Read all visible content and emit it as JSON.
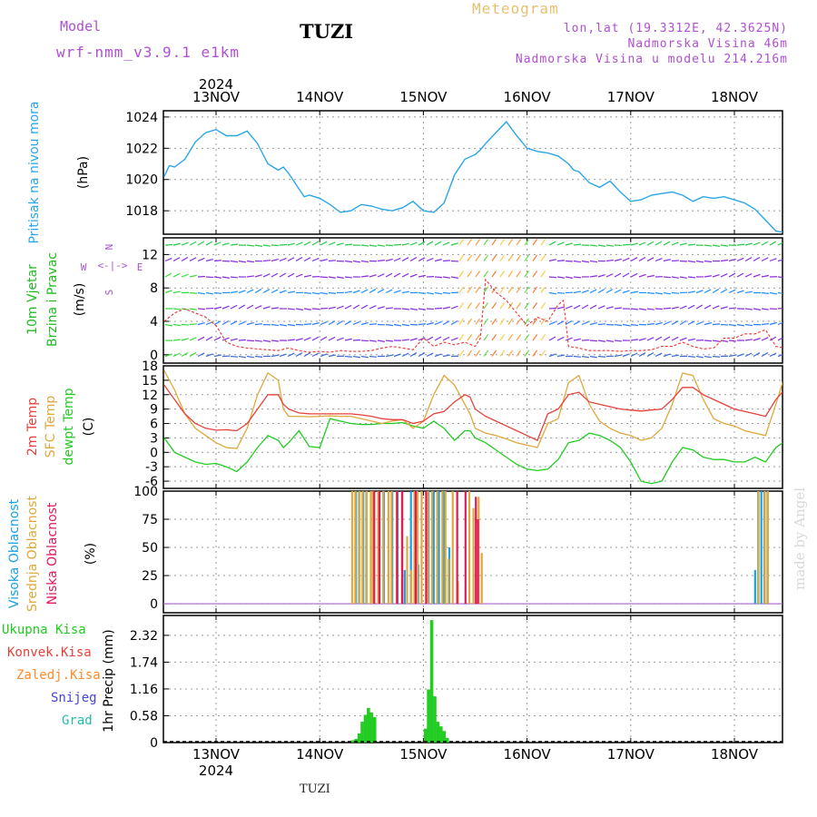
{
  "header": {
    "model_label": "Model",
    "model_name": "wrf-nmm_v3.9.1 e1km",
    "title": "TUZI",
    "subtitle": "Meteogram",
    "lonlat": "lon,lat (19.3312E, 42.3625N)",
    "elevation": "Nadmorska Visina 46m",
    "elevation_model": "Nadmorska Visina u modelu 214.216m"
  },
  "footer": {
    "station": "TUZI",
    "watermark": "made by Angel"
  },
  "colors": {
    "pressure": "#29a6e8",
    "t2m": "#e8403a",
    "sfc": "#e0a83c",
    "dewpt": "#22cc22",
    "high_cloud": "#1aa0e6",
    "mid_cloud": "#e0a83c",
    "low_cloud": "#e01a5a",
    "precip_total": "#22cc22",
    "precip_conv": "#e8403a",
    "precip_frozen": "#ff8a2a",
    "snow": "#4444dd",
    "hail": "#22bbaa",
    "wind_label": "#22bb22",
    "compass": "#b04fd3"
  },
  "chart_data": [
    {
      "type": "line",
      "panel": "pressure",
      "ylabel_main": "Pritisak na nivou mora",
      "ylabel_unit": "(hPa)",
      "yticks": [
        1018,
        1020,
        1022,
        1024
      ],
      "ylim": [
        1016.5,
        1024.4
      ],
      "xlim_days": [
        0,
        6
      ],
      "x_tick_labels": [
        "13NOV",
        "14NOV",
        "15NOV",
        "16NOV",
        "17NOV",
        "18NOV"
      ],
      "x_year": "2024",
      "series": [
        {
          "x": [
            -0.5,
            -0.45,
            -0.4,
            -0.3,
            -0.2,
            -0.1,
            0,
            0.1,
            0.2,
            0.3,
            0.4,
            0.5,
            0.6,
            0.65,
            0.7,
            0.8,
            0.85,
            0.9,
            1.0,
            1.1,
            1.2,
            1.3,
            1.4,
            1.5,
            1.6,
            1.7,
            1.8,
            1.9,
            2.0,
            2.1,
            2.2,
            2.3,
            2.4,
            2.5,
            2.55,
            2.6,
            2.7,
            2.8,
            2.9,
            3.0,
            3.1,
            3.2,
            3.3,
            3.4,
            3.45,
            3.5,
            3.6,
            3.7,
            3.8,
            3.9,
            4.0,
            4.1,
            4.2,
            4.3,
            4.4,
            4.5,
            4.6,
            4.7,
            4.8,
            4.9,
            5.0,
            5.1,
            5.2,
            5.3,
            5.4,
            5.5,
            5.55
          ],
          "values": [
            1020.2,
            1020.9,
            1020.8,
            1021.3,
            1022.4,
            1023.0,
            1023.2,
            1022.8,
            1022.8,
            1023.1,
            1022.3,
            1021.0,
            1020.6,
            1020.8,
            1020.4,
            1019.4,
            1018.9,
            1019.0,
            1018.8,
            1018.4,
            1017.9,
            1018.0,
            1018.4,
            1018.3,
            1018.1,
            1018.0,
            1018.2,
            1018.6,
            1018.0,
            1017.9,
            1018.5,
            1020.3,
            1021.3,
            1021.6,
            1021.9,
            1022.3,
            1023.0,
            1023.7,
            1022.8,
            1022.0,
            1021.8,
            1021.7,
            1021.5,
            1021.0,
            1020.6,
            1020.5,
            1019.8,
            1019.5,
            1019.9,
            1019.2,
            1018.6,
            1018.7,
            1019.0,
            1019.1,
            1019.2,
            1019.0,
            1018.6,
            1018.9,
            1018.8,
            1018.9,
            1018.7,
            1018.5,
            1018.1,
            1017.4,
            1016.7,
            1016.6,
            1016.4
          ]
        }
      ]
    },
    {
      "type": "line",
      "panel": "wind",
      "ylabel_main": "10m Vjetar",
      "ylabel_sub": "Brzina i Pravac",
      "ylabel_unit": "(m/s)",
      "compass": {
        "N": "N",
        "S": "S",
        "W": "W",
        "E": "E"
      },
      "yticks": [
        0,
        4,
        8,
        12
      ],
      "ylim": [
        -1,
        14
      ],
      "series": [
        {
          "name": "",
          "x": [
            -0.5,
            -0.4,
            -0.3,
            -0.2,
            -0.1,
            0,
            0.1,
            0.2,
            0.3,
            0.4,
            0.5,
            0.6,
            0.7,
            0.8,
            0.9,
            1.0,
            1.1,
            1.2,
            1.3,
            1.4,
            1.5,
            1.6,
            1.7,
            1.8,
            1.9,
            2.0,
            2.1,
            2.2,
            2.3,
            2.4,
            2.5,
            2.55,
            2.6,
            2.7,
            2.8,
            2.9,
            3.0,
            3.1,
            3.2,
            3.3,
            3.35,
            3.4,
            3.5,
            3.6,
            3.7,
            3.8,
            3.9,
            4.0,
            4.1,
            4.2,
            4.3,
            4.4,
            4.5,
            4.6,
            4.7,
            4.8,
            4.9,
            5.0,
            5.1,
            5.2,
            5.3,
            5.4,
            5.5,
            5.55
          ],
          "values": [
            4.0,
            5.0,
            5.5,
            5.0,
            4.5,
            3.5,
            1.5,
            1.0,
            0.8,
            0.7,
            0.6,
            0.5,
            0.8,
            0.5,
            0.3,
            0.4,
            0.3,
            0.5,
            0.4,
            0.4,
            0.5,
            0.8,
            1.0,
            0.8,
            0.6,
            2.0,
            1.0,
            1.5,
            1.2,
            1.5,
            1.0,
            2.0,
            9.0,
            7.5,
            6.5,
            5.0,
            3.5,
            4.5,
            4.0,
            6.0,
            6.5,
            1.0,
            0.8,
            0.5,
            0.5,
            0.5,
            0.4,
            0.5,
            0.5,
            0.6,
            1.0,
            1.0,
            1.5,
            1.0,
            0.7,
            0.8,
            2.0,
            2.0,
            2.5,
            2.5,
            3.0,
            1.0,
            0.8,
            0.7
          ]
        }
      ]
    },
    {
      "type": "line",
      "panel": "temperature",
      "ylabel_lines": [
        "2m Temp",
        "SFC Temp",
        "dewpt Temp"
      ],
      "ylabel_unit": "(C)",
      "yticks": [
        -6,
        -3,
        0,
        3,
        6,
        9,
        12,
        15,
        18
      ],
      "ylim": [
        -7.5,
        18
      ],
      "series": [
        {
          "name": "2m Temp",
          "x": [
            -0.5,
            -0.4,
            -0.3,
            -0.2,
            -0.1,
            0,
            0.1,
            0.2,
            0.3,
            0.4,
            0.5,
            0.6,
            0.65,
            0.7,
            0.8,
            0.9,
            1.0,
            1.1,
            1.2,
            1.3,
            1.4,
            1.5,
            1.6,
            1.7,
            1.8,
            1.9,
            2.0,
            2.1,
            2.2,
            2.3,
            2.4,
            2.45,
            2.5,
            2.6,
            2.7,
            2.8,
            2.9,
            3.0,
            3.1,
            3.2,
            3.3,
            3.4,
            3.5,
            3.6,
            3.7,
            3.8,
            3.9,
            4.0,
            4.1,
            4.2,
            4.3,
            4.4,
            4.5,
            4.6,
            4.7,
            4.8,
            4.9,
            5.0,
            5.1,
            5.2,
            5.3,
            5.4,
            5.5,
            5.55
          ],
          "values": [
            14.0,
            11.0,
            8.0,
            6.0,
            5.0,
            4.6,
            4.7,
            4.5,
            6.0,
            9.0,
            12.0,
            12.0,
            10.0,
            9.0,
            8.2,
            8.0,
            8.0,
            8.0,
            8.0,
            8.0,
            7.8,
            7.5,
            7.0,
            6.8,
            6.8,
            6.0,
            6.5,
            8.0,
            8.5,
            10.5,
            12.0,
            11.5,
            9.0,
            7.5,
            6.5,
            5.5,
            4.5,
            3.5,
            2.5,
            8.0,
            9.0,
            12.0,
            12.5,
            10.5,
            10.0,
            9.5,
            9.0,
            8.8,
            8.6,
            8.8,
            9.0,
            11.0,
            13.5,
            13.5,
            12.0,
            11.0,
            10.0,
            9.0,
            8.5,
            8.0,
            7.5,
            11.0,
            13.5,
            14.0
          ]
        },
        {
          "name": "SFC Temp",
          "x": [
            -0.5,
            -0.4,
            -0.3,
            -0.2,
            -0.1,
            0,
            0.1,
            0.2,
            0.3,
            0.4,
            0.5,
            0.6,
            0.65,
            0.7,
            0.8,
            0.9,
            1.0,
            1.1,
            1.2,
            1.3,
            1.4,
            1.5,
            1.6,
            1.7,
            1.8,
            1.9,
            2.0,
            2.1,
            2.2,
            2.3,
            2.4,
            2.45,
            2.5,
            2.6,
            2.7,
            2.8,
            2.9,
            3.0,
            3.1,
            3.2,
            3.3,
            3.4,
            3.5,
            3.6,
            3.7,
            3.8,
            3.9,
            4.0,
            4.1,
            4.2,
            4.3,
            4.4,
            4.5,
            4.6,
            4.7,
            4.8,
            4.9,
            5.0,
            5.1,
            5.2,
            5.3,
            5.4,
            5.5,
            5.55
          ],
          "values": [
            17.0,
            13.0,
            8.0,
            5.0,
            3.5,
            2.0,
            1.0,
            0.8,
            5.0,
            12.0,
            16.5,
            15.0,
            9.0,
            7.5,
            7.5,
            7.4,
            7.5,
            7.6,
            7.5,
            7.5,
            7.0,
            6.5,
            6.0,
            6.5,
            6.8,
            5.0,
            6.5,
            12.0,
            16.0,
            14.0,
            10.0,
            8.0,
            5.0,
            4.0,
            3.5,
            2.8,
            2.0,
            1.5,
            1.0,
            6.0,
            7.0,
            14.5,
            16.0,
            10.0,
            6.5,
            5.0,
            4.0,
            3.5,
            2.5,
            3.0,
            5.0,
            10.0,
            16.5,
            16.0,
            11.0,
            7.0,
            6.0,
            5.5,
            4.5,
            4.0,
            3.5,
            10.0,
            17.0,
            17.0
          ]
        },
        {
          "name": "dewpt Temp",
          "x": [
            -0.5,
            -0.4,
            -0.3,
            -0.2,
            -0.1,
            0,
            0.1,
            0.2,
            0.3,
            0.4,
            0.5,
            0.6,
            0.65,
            0.7,
            0.8,
            0.9,
            1.0,
            1.1,
            1.2,
            1.3,
            1.4,
            1.5,
            1.6,
            1.7,
            1.8,
            1.9,
            2.0,
            2.1,
            2.2,
            2.3,
            2.4,
            2.45,
            2.5,
            2.6,
            2.7,
            2.8,
            2.9,
            3.0,
            3.1,
            3.2,
            3.3,
            3.4,
            3.5,
            3.6,
            3.7,
            3.8,
            3.9,
            4.0,
            4.1,
            4.2,
            4.3,
            4.4,
            4.5,
            4.6,
            4.7,
            4.8,
            4.9,
            5.0,
            5.1,
            5.2,
            5.3,
            5.4,
            5.5,
            5.55
          ],
          "values": [
            3.0,
            0.0,
            -1.0,
            -2.0,
            -2.5,
            -2.3,
            -3.0,
            -4.0,
            -2.0,
            1.0,
            3.5,
            2.5,
            1.0,
            2.0,
            4.5,
            1.2,
            1.0,
            7.0,
            6.5,
            6.0,
            5.8,
            5.8,
            6.0,
            6.0,
            6.2,
            5.5,
            5.0,
            6.5,
            5.0,
            2.5,
            4.5,
            4.5,
            3.0,
            2.0,
            0.5,
            -1.0,
            -2.5,
            -3.5,
            -3.8,
            -3.5,
            -1.5,
            2.0,
            2.5,
            4.0,
            3.5,
            2.5,
            1.0,
            -2.0,
            -6.0,
            -6.5,
            -6.0,
            -2.0,
            1.0,
            0.5,
            -1.0,
            -1.5,
            -1.5,
            -2.0,
            -2.0,
            -1.0,
            -2.0,
            1.0,
            2.5,
            3.5
          ]
        }
      ]
    },
    {
      "type": "bar",
      "panel": "clouds",
      "ylabel_lines": [
        "Visoka Oblacnost",
        "Srednja Oblacnost",
        "Niska Oblacnost"
      ],
      "ylabel_unit": "(%)",
      "yticks": [
        0,
        25,
        50,
        75,
        100
      ],
      "ylim": [
        -8,
        100
      ],
      "series": [
        {
          "name": "Visoka Oblacnost",
          "x": [
            1.35,
            1.38,
            1.42,
            1.45,
            1.52,
            1.57,
            1.62,
            1.7,
            1.75,
            1.82,
            1.88,
            1.95,
            2.05,
            2.1,
            2.15,
            2.2,
            2.25,
            5.2,
            5.23,
            5.26,
            5.29,
            5.32
          ],
          "values": [
            100,
            100,
            100,
            100,
            100,
            100,
            100,
            100,
            100,
            30,
            100,
            35,
            100,
            100,
            100,
            100,
            50,
            30,
            100,
            100,
            100,
            100
          ]
        },
        {
          "name": "Srednja Oblacnost",
          "x": [
            1.3,
            1.33,
            1.37,
            1.4,
            1.44,
            1.48,
            1.5,
            1.55,
            1.6,
            1.65,
            1.68,
            1.73,
            1.78,
            1.83,
            1.87,
            1.9,
            1.93,
            1.97,
            2.03,
            2.07,
            2.12,
            2.17,
            2.2,
            2.23,
            2.27,
            2.32,
            2.43,
            2.47,
            2.52,
            2.55,
            5.22,
            5.28,
            5.31
          ],
          "values": [
            100,
            100,
            100,
            100,
            100,
            100,
            100,
            100,
            100,
            100,
            100,
            100,
            100,
            60,
            30,
            100,
            100,
            100,
            100,
            100,
            100,
            100,
            100,
            40,
            100,
            20,
            100,
            85,
            95,
            45,
            100,
            100,
            100
          ]
        },
        {
          "name": "Niska Oblacnost",
          "x": [
            1.5,
            1.55,
            1.72,
            1.77,
            1.9,
            2.0,
            2.3,
            2.38,
            2.48,
            2.5
          ],
          "values": [
            100,
            100,
            100,
            100,
            100,
            100,
            100,
            100,
            95,
            75
          ]
        }
      ]
    },
    {
      "type": "bar",
      "panel": "precipitation",
      "ylabel_unit": "1hr Precip (mm)",
      "yticks": [
        0,
        0.58,
        1.16,
        1.74,
        2.32
      ],
      "ylim": [
        0,
        2.75
      ],
      "legend": [
        "Ukupna Kisa",
        "Konvek.Kisa",
        "Zaledj.Kisa",
        "Snijeg",
        "Grad"
      ],
      "series": [
        {
          "name": "Ukupna Kisa",
          "x": [
            1.32,
            1.35,
            1.38,
            1.41,
            1.44,
            1.47,
            1.5,
            1.53,
            2.02,
            2.05,
            2.08,
            2.11,
            2.14,
            2.17,
            2.2,
            2.23
          ],
          "values": [
            0.05,
            0.08,
            0.2,
            0.45,
            0.6,
            0.75,
            0.65,
            0.55,
            0.3,
            1.15,
            2.65,
            1.0,
            0.45,
            0.35,
            0.25,
            0.1
          ]
        }
      ]
    }
  ]
}
